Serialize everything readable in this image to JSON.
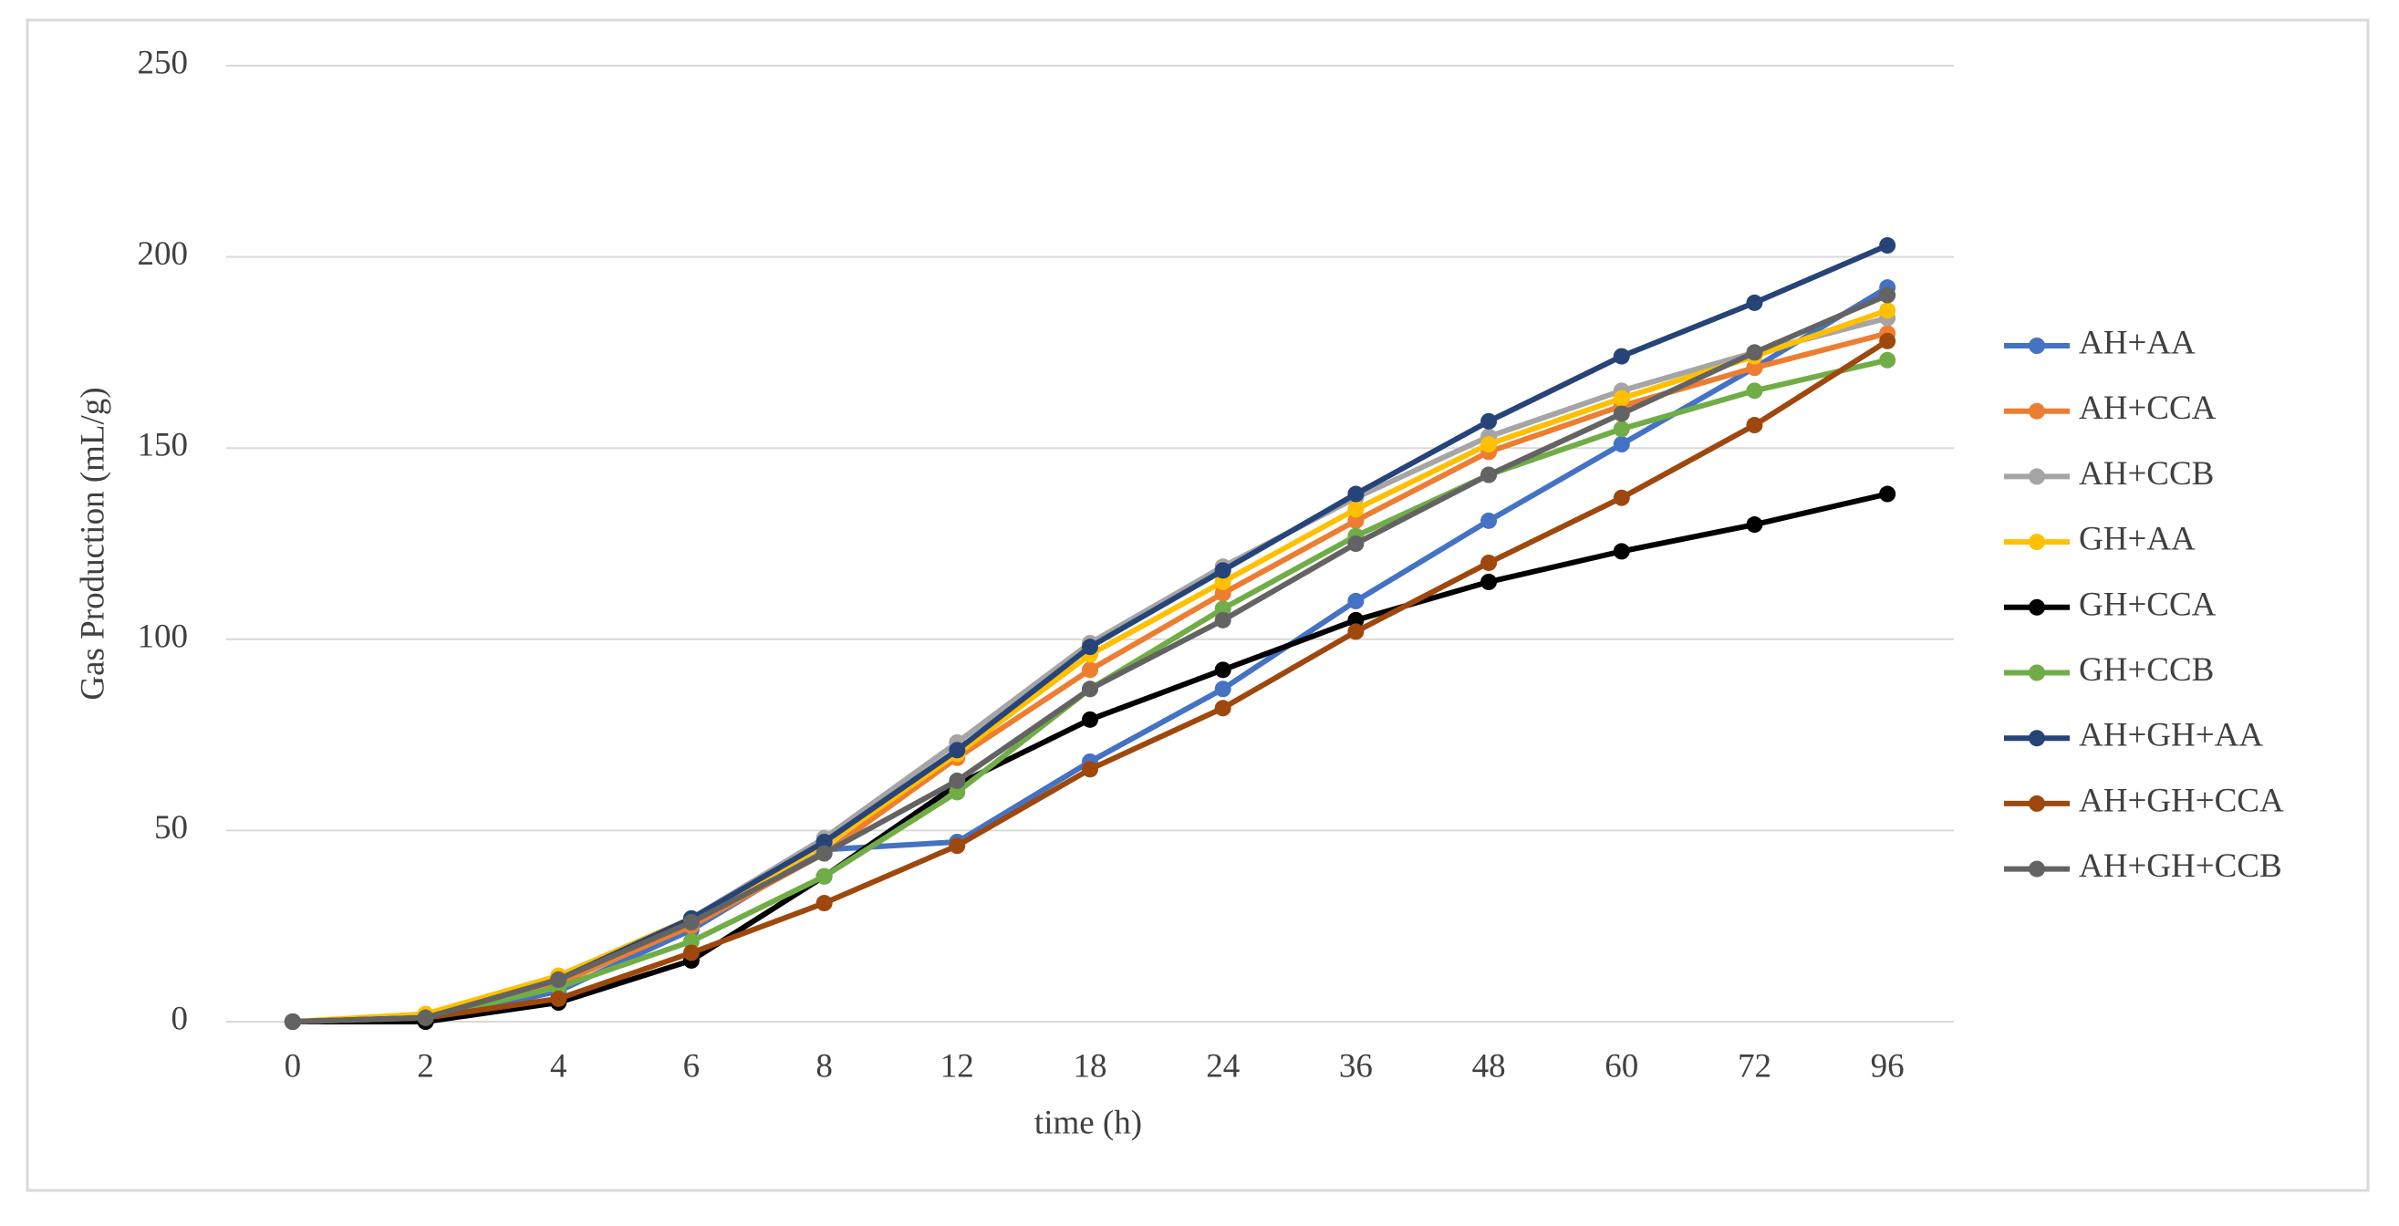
{
  "chart_data": {
    "type": "line",
    "x_label": "time (h)",
    "y_label": "Gas Production  (mL/g)",
    "categories": [
      "0",
      "2",
      "4",
      "6",
      "8",
      "12",
      "18",
      "24",
      "36",
      "48",
      "60",
      "72",
      "96"
    ],
    "ylim": [
      0,
      250
    ],
    "yticks": [
      0,
      50,
      100,
      150,
      200,
      250
    ],
    "grid": true,
    "legend": "right",
    "series": [
      {
        "name": "AH+AA",
        "color": "#4472c4",
        "values": [
          0,
          0,
          8,
          24,
          45,
          47,
          68,
          87,
          110,
          131,
          151,
          171,
          192
        ]
      },
      {
        "name": "AH+CCA",
        "color": "#ed7d31",
        "values": [
          0,
          1,
          10,
          25,
          44,
          69,
          92,
          112,
          131,
          149,
          161,
          171,
          180
        ]
      },
      {
        "name": "AH+CCB",
        "color": "#a5a5a5",
        "values": [
          0,
          1,
          12,
          27,
          48,
          73,
          99,
          119,
          137,
          153,
          165,
          175,
          184
        ]
      },
      {
        "name": "GH+AA",
        "color": "#ffc000",
        "values": [
          0,
          2,
          12,
          27,
          46,
          70,
          96,
          115,
          134,
          151,
          163,
          174,
          186
        ]
      },
      {
        "name": "GH+CCA",
        "color": "#000000",
        "values": [
          0,
          0,
          5,
          16,
          38,
          62,
          79,
          92,
          105,
          115,
          123,
          130,
          138
        ]
      },
      {
        "name": "GH+CCB",
        "color": "#70ad47",
        "values": [
          0,
          1,
          9,
          21,
          38,
          60,
          87,
          108,
          127,
          143,
          155,
          165,
          173
        ]
      },
      {
        "name": "AH+GH+AA",
        "color": "#264478",
        "values": [
          0,
          1,
          11,
          27,
          47,
          71,
          98,
          118,
          138,
          157,
          174,
          188,
          203
        ]
      },
      {
        "name": "AH+GH+CCA",
        "color": "#9e480e",
        "values": [
          0,
          1,
          6,
          18,
          31,
          46,
          66,
          82,
          102,
          120,
          137,
          156,
          178
        ]
      },
      {
        "name": "AH+GH+CCB",
        "color": "#636363",
        "values": [
          0,
          1,
          11,
          26,
          44,
          63,
          87,
          105,
          125,
          143,
          159,
          175,
          190
        ]
      }
    ]
  }
}
